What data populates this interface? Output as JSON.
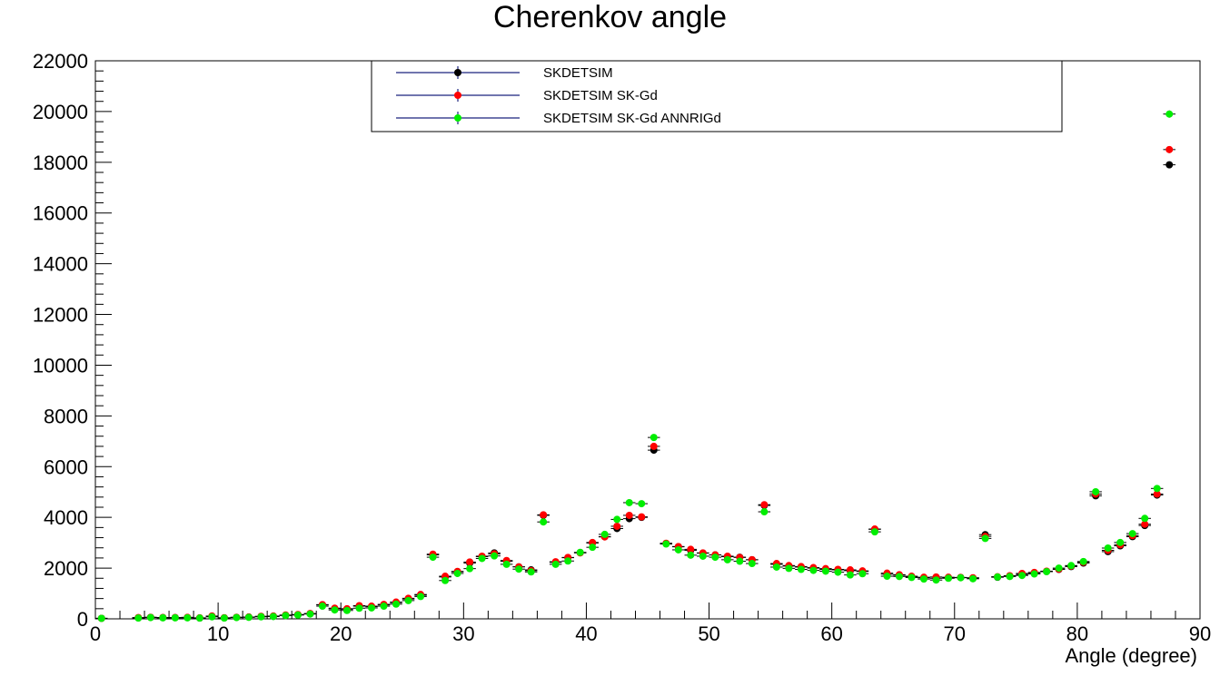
{
  "chart_data": {
    "type": "scatter",
    "title": "Cherenkov angle",
    "xlabel": "Angle (degree)",
    "ylabel": "",
    "xlim": [
      0,
      90
    ],
    "ylim": [
      0,
      22000
    ],
    "x_ticks": [
      "0",
      "10",
      "20",
      "30",
      "40",
      "50",
      "60",
      "70",
      "80",
      "90"
    ],
    "y_ticks": [
      "0",
      "2000",
      "4000",
      "6000",
      "8000",
      "10000",
      "12000",
      "14000",
      "16000",
      "18000",
      "20000",
      "22000"
    ],
    "legend_position": "top-center",
    "x": [
      0.5,
      3.5,
      4.5,
      5.5,
      6.5,
      7.5,
      8.5,
      9.5,
      10.5,
      11.5,
      12.5,
      13.5,
      14.5,
      15.5,
      16.5,
      17.5,
      18.5,
      19.5,
      20.5,
      21.5,
      22.5,
      23.5,
      24.5,
      25.5,
      26.5,
      27.5,
      28.5,
      29.5,
      30.5,
      31.5,
      32.5,
      33.5,
      34.5,
      35.5,
      36.5,
      37.5,
      38.5,
      39.5,
      40.5,
      41.5,
      42.5,
      43.5,
      44.5,
      45.5,
      46.5,
      47.5,
      48.5,
      49.5,
      50.5,
      51.5,
      52.5,
      53.5,
      54.5,
      55.5,
      56.5,
      57.5,
      58.5,
      59.5,
      60.5,
      61.5,
      62.5,
      63.5,
      64.5,
      65.5,
      66.5,
      67.5,
      68.5,
      69.5,
      70.5,
      71.5,
      72.5,
      73.5,
      74.5,
      75.5,
      76.5,
      77.5,
      78.5,
      79.5,
      80.5,
      81.5,
      82.5,
      83.5,
      84.5,
      85.5,
      86.5,
      87.5
    ],
    "series": [
      {
        "name": "SKDETSIM",
        "color": "#000000",
        "values": [
          20,
          40,
          60,
          50,
          50,
          50,
          30,
          100,
          40,
          60,
          70,
          90,
          100,
          140,
          160,
          200,
          550,
          400,
          380,
          500,
          480,
          550,
          640,
          780,
          930,
          2520,
          1650,
          1850,
          2200,
          2450,
          2600,
          2270,
          2050,
          1930,
          4080,
          2230,
          2410,
          2610,
          2990,
          3240,
          3560,
          3950,
          4000,
          6650,
          2970,
          2840,
          2700,
          2590,
          2520,
          2450,
          2430,
          2330,
          4470,
          2150,
          2080,
          2040,
          2000,
          1950,
          1930,
          1900,
          1870,
          3530,
          1760,
          1720,
          1660,
          1620,
          1600,
          1620,
          1630,
          1610,
          3320,
          1640,
          1680,
          1750,
          1800,
          1870,
          1950,
          2060,
          2200,
          4850,
          2650,
          2880,
          3240,
          3680,
          4880,
          17900
        ]
      },
      {
        "name": "SKDETSIM SK-Gd",
        "color": "#ff0000",
        "values": [
          20,
          50,
          60,
          50,
          50,
          60,
          40,
          110,
          40,
          60,
          70,
          100,
          110,
          150,
          170,
          210,
          560,
          420,
          400,
          520,
          500,
          570,
          660,
          810,
          960,
          2550,
          1680,
          1870,
          2240,
          2470,
          2560,
          2300,
          2050,
          1900,
          4100,
          2250,
          2420,
          2600,
          3010,
          3230,
          3650,
          4080,
          4020,
          6800,
          2980,
          2850,
          2740,
          2600,
          2520,
          2470,
          2420,
          2330,
          4500,
          2180,
          2100,
          2060,
          2020,
          1980,
          1950,
          1930,
          1890,
          3540,
          1800,
          1740,
          1680,
          1640,
          1650,
          1640,
          1630,
          1620,
          3250,
          1660,
          1700,
          1790,
          1830,
          1880,
          1960,
          2080,
          2230,
          4920,
          2700,
          2920,
          3280,
          3730,
          4920,
          18500
        ]
      },
      {
        "name": "SKDETSIM SK-Gd ANNRIGd",
        "color": "#00ee00",
        "values": [
          20,
          30,
          50,
          40,
          40,
          40,
          30,
          80,
          30,
          50,
          60,
          80,
          90,
          130,
          150,
          190,
          500,
          350,
          330,
          420,
          430,
          500,
          580,
          720,
          880,
          2430,
          1510,
          1790,
          1980,
          2380,
          2480,
          2150,
          1960,
          1850,
          3820,
          2150,
          2280,
          2620,
          2820,
          3330,
          3920,
          4580,
          4540,
          7150,
          2950,
          2720,
          2510,
          2470,
          2430,
          2330,
          2270,
          2180,
          4220,
          2040,
          1990,
          1950,
          1910,
          1880,
          1840,
          1730,
          1780,
          3430,
          1680,
          1670,
          1630,
          1570,
          1530,
          1600,
          1620,
          1580,
          3170,
          1650,
          1670,
          1710,
          1770,
          1860,
          2000,
          2100,
          2260,
          5010,
          2790,
          3010,
          3360,
          3960,
          5140,
          19900
        ]
      }
    ]
  }
}
